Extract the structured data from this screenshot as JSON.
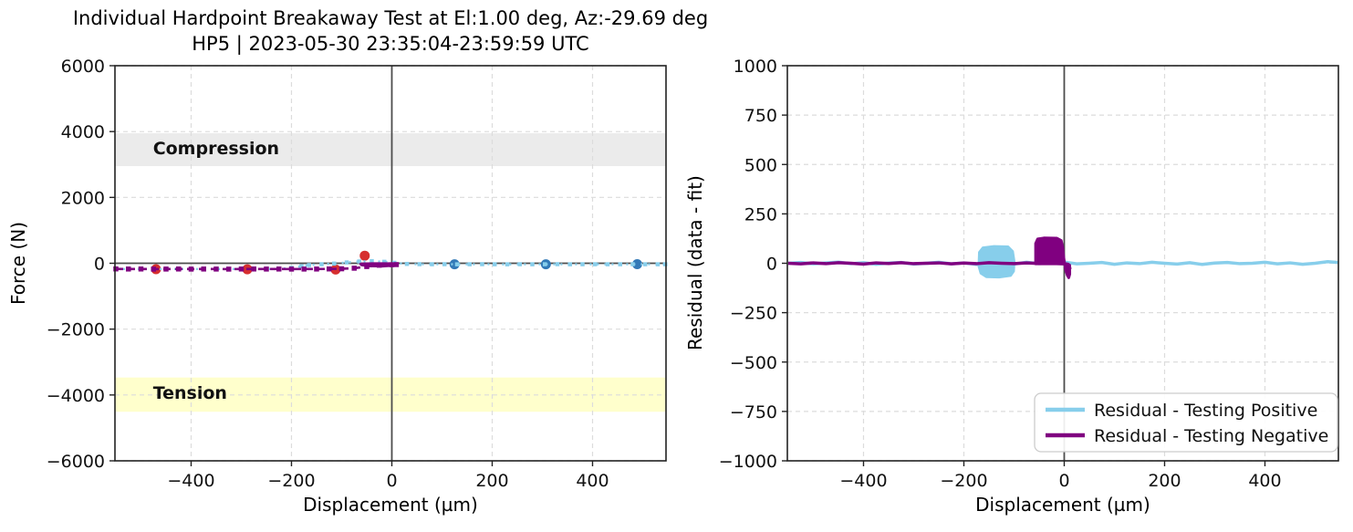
{
  "chart_data": [
    {
      "id": "force",
      "type": "line",
      "title": "Individual Hardpoint Breakaway Test at El:1.00 deg, Az:-29.69 deg",
      "subtitle": "HP5 | 2023-05-30 23:35:04-23:59:59 UTC",
      "xlabel": "Displacement (µm)",
      "ylabel": "Force (N)",
      "xlim": [
        -551.8,
        546.4
      ],
      "ylim": [
        -6000,
        6000
      ],
      "xticks": [
        -400,
        -200,
        0,
        200,
        400
      ],
      "yticks": [
        -6000,
        -4000,
        -2000,
        0,
        2000,
        4000,
        6000
      ],
      "grid": true,
      "reference_lines": {
        "h": 0,
        "v": 0,
        "color": "#4d4d4d"
      },
      "bands": [
        {
          "name": "compression-band",
          "label": "Compression",
          "y0": 2950,
          "y1": 3950,
          "color": "#ebebeb",
          "label_x": -476,
          "label_y": 3310
        },
        {
          "name": "tension-band",
          "label": "Tension",
          "y0": -4510,
          "y1": -3470,
          "color": "#ffffcc",
          "label_x": -476,
          "label_y": -4115
        }
      ],
      "series": [
        {
          "name": "measured-points-negative",
          "type": "points",
          "color": "#d62f2f",
          "marker": "circle",
          "marker_size": 11,
          "points": [
            [
              -470,
              -180
            ],
            [
              -288,
              -182
            ],
            [
              -112,
              -190
            ],
            [
              -54,
              230
            ]
          ]
        },
        {
          "name": "measured-points-positive",
          "type": "points",
          "color": "#3279b7",
          "marker": "circle",
          "marker_size": 11,
          "points": [
            [
              125,
              -30
            ],
            [
              307,
              -30
            ],
            [
              489,
              -27
            ]
          ]
        },
        {
          "name": "testing-positive",
          "type": "line",
          "color": "#87CEEB",
          "width": 2.4,
          "dash": "2,6",
          "marker": "square",
          "marker_size": 4.5,
          "points": [
            [
              -550,
              -176
            ],
            [
              -500,
              -176
            ],
            [
              -450,
              -176
            ],
            [
              -400,
              -176
            ],
            [
              -350,
              -176
            ],
            [
              -300,
              -176
            ],
            [
              -250,
              -176
            ],
            [
              -225,
              -170
            ],
            [
              -200,
              -140
            ],
            [
              -180,
              -90
            ],
            [
              -165,
              -55
            ],
            [
              -140,
              -30
            ],
            [
              -115,
              -10
            ],
            [
              -90,
              25
            ],
            [
              -65,
              55
            ],
            [
              -40,
              65
            ],
            [
              -15,
              45
            ],
            [
              5,
              15
            ],
            [
              30,
              -20
            ],
            [
              55,
              -28
            ],
            [
              80,
              -30
            ],
            [
              105,
              -28
            ],
            [
              130,
              -32
            ],
            [
              155,
              -30
            ],
            [
              180,
              -28
            ],
            [
              205,
              -30
            ],
            [
              230,
              -32
            ],
            [
              255,
              -29
            ],
            [
              280,
              -31
            ],
            [
              305,
              -30
            ],
            [
              330,
              -28
            ],
            [
              355,
              -31
            ],
            [
              380,
              -30
            ],
            [
              405,
              -29
            ],
            [
              430,
              -31
            ],
            [
              455,
              -30
            ],
            [
              480,
              -28
            ],
            [
              505,
              -30
            ],
            [
              530,
              -31
            ],
            [
              545,
              -30
            ]
          ]
        },
        {
          "name": "testing-negative",
          "type": "line",
          "color": "#800080",
          "width": 2.6,
          "dash": "8,5",
          "marker": "square",
          "marker_size": 5.5,
          "points": [
            [
              -550,
              -172
            ],
            [
              -525,
              -175
            ],
            [
              -500,
              -174
            ],
            [
              -475,
              -178
            ],
            [
              -450,
              -176
            ],
            [
              -425,
              -174
            ],
            [
              -400,
              -177
            ],
            [
              -375,
              -175
            ],
            [
              -350,
              -176
            ],
            [
              -325,
              -178
            ],
            [
              -300,
              -175
            ],
            [
              -275,
              -174
            ],
            [
              -250,
              -176
            ],
            [
              -225,
              -175
            ],
            [
              -200,
              -177
            ],
            [
              -175,
              -176
            ],
            [
              -150,
              -175
            ],
            [
              -125,
              -172
            ],
            [
              -100,
              -168
            ],
            [
              -75,
              -150
            ],
            [
              -50,
              -100
            ],
            [
              -25,
              -60
            ],
            [
              0,
              -45
            ],
            [
              9,
              -40
            ]
          ]
        },
        {
          "name": "breakaway-cluster",
          "type": "polygon",
          "color": "#800080",
          "points": [
            [
              -62,
              -22
            ],
            [
              -40,
              -12
            ],
            [
              -15,
              -10
            ],
            [
              5,
              -14
            ],
            [
              9,
              -35
            ],
            [
              2,
              -65
            ],
            [
              -18,
              -85
            ],
            [
              -45,
              -78
            ],
            [
              -60,
              -52
            ]
          ]
        }
      ]
    },
    {
      "id": "residual",
      "type": "line",
      "xlabel": "Displacement (µm)",
      "ylabel": "Residual (data - fit)",
      "xlim": [
        -551.8,
        546.4
      ],
      "ylim": [
        -1000,
        1000
      ],
      "xticks": [
        -400,
        -200,
        0,
        200,
        400
      ],
      "yticks": [
        -1000,
        -750,
        -500,
        -250,
        0,
        250,
        500,
        750,
        1000
      ],
      "grid": true,
      "reference_lines": {
        "v": 0,
        "color": "#4d4d4d"
      },
      "legend_loc": "lower right",
      "legend": {
        "entries": [
          {
            "label": "Residual - Testing Positive",
            "color": "#87CEEB"
          },
          {
            "label": "Residual - Testing Negative",
            "color": "#800080"
          }
        ]
      },
      "series": [
        {
          "name": "residual-positive-blob",
          "type": "polygon",
          "color": "#87CEEB",
          "points": [
            [
              -170,
              -15
            ],
            [
              -169,
              55
            ],
            [
              -162,
              78
            ],
            [
              -140,
              85
            ],
            [
              -112,
              83
            ],
            [
              -103,
              60
            ],
            [
              -100,
              10
            ],
            [
              -101,
              -40
            ],
            [
              -107,
              -62
            ],
            [
              -130,
              -70
            ],
            [
              -155,
              -68
            ],
            [
              -166,
              -50
            ]
          ]
        },
        {
          "name": "residual-positive",
          "type": "line",
          "color": "#87CEEB",
          "width": 3.5,
          "points": [
            [
              -550,
              0
            ],
            [
              -525,
              4
            ],
            [
              -500,
              -3
            ],
            [
              -475,
              2
            ],
            [
              -450,
              6
            ],
            [
              -425,
              -2
            ],
            [
              -400,
              3
            ],
            [
              -375,
              -5
            ],
            [
              -350,
              1
            ],
            [
              -325,
              4
            ],
            [
              -300,
              -4
            ],
            [
              -275,
              0
            ],
            [
              -250,
              5
            ],
            [
              -225,
              -3
            ],
            [
              -200,
              2
            ],
            [
              -175,
              -6
            ],
            [
              -150,
              3
            ],
            [
              -125,
              0
            ],
            [
              -100,
              -4
            ],
            [
              -75,
              5
            ],
            [
              -50,
              -2
            ],
            [
              -25,
              2
            ],
            [
              0,
              6
            ],
            [
              25,
              -3
            ],
            [
              50,
              0
            ],
            [
              75,
              4
            ],
            [
              100,
              -5
            ],
            [
              125,
              2
            ],
            [
              150,
              -2
            ],
            [
              175,
              5
            ],
            [
              200,
              0
            ],
            [
              225,
              -4
            ],
            [
              250,
              3
            ],
            [
              275,
              -6
            ],
            [
              300,
              1
            ],
            [
              325,
              4
            ],
            [
              350,
              -2
            ],
            [
              375,
              0
            ],
            [
              400,
              5
            ],
            [
              425,
              -3
            ],
            [
              450,
              2
            ],
            [
              475,
              -5
            ],
            [
              500,
              0
            ],
            [
              525,
              8
            ],
            [
              545,
              4
            ]
          ]
        },
        {
          "name": "residual-negative-blob",
          "type": "polygon",
          "color": "#800080",
          "points": [
            [
              -57,
              -3
            ],
            [
              -57,
              100
            ],
            [
              -53,
              123
            ],
            [
              -40,
              128
            ],
            [
              -15,
              127
            ],
            [
              -6,
              115
            ],
            [
              -3,
              80
            ],
            [
              -1,
              30
            ],
            [
              1,
              -5
            ],
            [
              3,
              -35
            ],
            [
              6,
              -60
            ],
            [
              9,
              -73
            ],
            [
              11,
              -55
            ],
            [
              11,
              -10
            ],
            [
              5,
              -3
            ]
          ]
        },
        {
          "name": "residual-negative",
          "type": "line",
          "color": "#800080",
          "width": 3.5,
          "points": [
            [
              -550,
              0
            ],
            [
              -525,
              -3
            ],
            [
              -500,
              2
            ],
            [
              -475,
              -2
            ],
            [
              -450,
              3
            ],
            [
              -425,
              0
            ],
            [
              -400,
              -4
            ],
            [
              -375,
              2
            ],
            [
              -350,
              -1
            ],
            [
              -325,
              3
            ],
            [
              -300,
              -2
            ],
            [
              -275,
              0
            ],
            [
              -250,
              2
            ],
            [
              -225,
              -3
            ],
            [
              -200,
              1
            ],
            [
              -175,
              -2
            ],
            [
              -150,
              3
            ],
            [
              -125,
              0
            ],
            [
              -100,
              -2
            ],
            [
              -75,
              2
            ],
            [
              -50,
              -1
            ],
            [
              -25,
              0
            ],
            [
              0,
              -3
            ],
            [
              8,
              -5
            ],
            [
              12,
              -30
            ]
          ]
        }
      ]
    }
  ]
}
